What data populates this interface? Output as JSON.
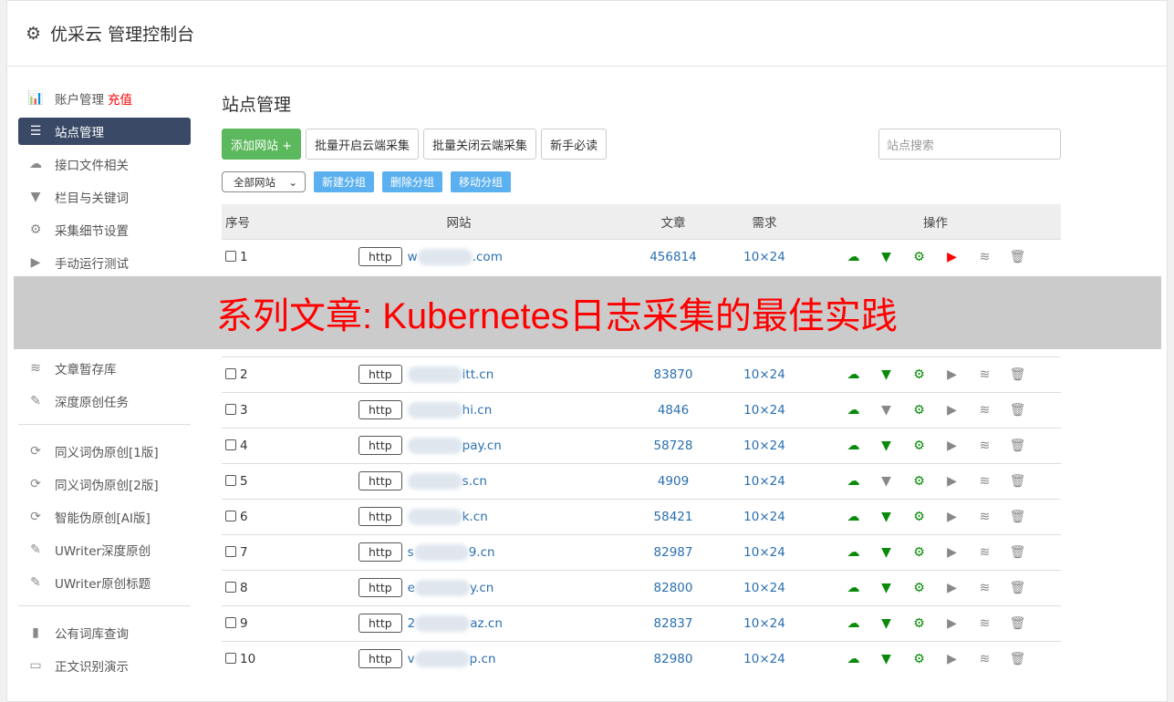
{
  "app": {
    "title": "优采云 管理控制台"
  },
  "sidebar": {
    "items": [
      {
        "label": "账户管理",
        "extra": "充值",
        "icon": "bar-chart-icon"
      },
      {
        "label": "站点管理",
        "icon": "server-icon",
        "active": true
      },
      {
        "label": "接口文件相关",
        "icon": "cloud-upload-icon"
      },
      {
        "label": "栏目与关键词",
        "icon": "filter-icon"
      },
      {
        "label": "采集细节设置",
        "icon": "gears-icon"
      },
      {
        "label": "手动运行测试",
        "icon": "play-circle-icon"
      },
      {
        "label": "文章暂存库",
        "icon": "database-icon"
      },
      {
        "label": "深度原创任务",
        "icon": "edit-icon"
      }
    ],
    "group2": [
      {
        "label": "同义词伪原创[1版]",
        "icon": "refresh-icon"
      },
      {
        "label": "同义词伪原创[2版]",
        "icon": "refresh-icon"
      },
      {
        "label": "智能伪原创[AI版]",
        "icon": "refresh-icon"
      },
      {
        "label": "UWriter深度原创",
        "icon": "edit-icon"
      },
      {
        "label": "UWriter原创标题",
        "icon": "edit-icon"
      }
    ],
    "group3": [
      {
        "label": "公有词库查询",
        "icon": "book-icon"
      },
      {
        "label": "正文识别演示",
        "icon": "monitor-icon"
      }
    ]
  },
  "main": {
    "title": "站点管理",
    "add_button": "添加网站 +",
    "batch_on": "批量开启云端采集",
    "batch_off": "批量关闭云端采集",
    "guide": "新手必读",
    "search_placeholder": "站点搜索",
    "group_select": "全部网站",
    "new_group": "新建分组",
    "delete_group": "删除分组",
    "move_group": "移动分组"
  },
  "table": {
    "headers": [
      "序号",
      "网站",
      "文章",
      "需求",
      "操作"
    ],
    "rows": [
      {
        "no": "1",
        "proto": "http",
        "site": "w",
        "suffix": ".com",
        "articles": "456814",
        "demand": "10×24",
        "filter_active": true,
        "play_red": true
      },
      {
        "no": "2",
        "proto": "http",
        "site": "",
        "suffix": "itt.cn",
        "articles": "83870",
        "demand": "10×24",
        "filter_active": true,
        "play_red": false
      },
      {
        "no": "3",
        "proto": "http",
        "site": "",
        "suffix": "hi.cn",
        "articles": "4846",
        "demand": "10×24",
        "filter_active": false,
        "play_red": false
      },
      {
        "no": "4",
        "proto": "http",
        "site": "",
        "suffix": "pay.cn",
        "articles": "58728",
        "demand": "10×24",
        "filter_active": true,
        "play_red": false
      },
      {
        "no": "5",
        "proto": "http",
        "site": "",
        "suffix": "s.cn",
        "articles": "4909",
        "demand": "10×24",
        "filter_active": false,
        "play_red": false
      },
      {
        "no": "6",
        "proto": "http",
        "site": "",
        "suffix": "k.cn",
        "articles": "58421",
        "demand": "10×24",
        "filter_active": true,
        "play_red": false
      },
      {
        "no": "7",
        "proto": "http",
        "site": "s",
        "suffix": "9.cn",
        "articles": "82987",
        "demand": "10×24",
        "filter_active": true,
        "play_red": false
      },
      {
        "no": "8",
        "proto": "http",
        "site": "e",
        "suffix": "y.cn",
        "articles": "82800",
        "demand": "10×24",
        "filter_active": true,
        "play_red": false
      },
      {
        "no": "9",
        "proto": "http",
        "site": "2",
        "suffix": "az.cn",
        "articles": "82837",
        "demand": "10×24",
        "filter_active": true,
        "play_red": false
      },
      {
        "no": "10",
        "proto": "http",
        "site": "v",
        "suffix": "p.cn",
        "articles": "82980",
        "demand": "10×24",
        "filter_active": true,
        "play_red": false
      }
    ]
  },
  "overlay": {
    "text": "系列文章: Kubernetes日志采集的最佳实践"
  },
  "colors": {
    "active_nav": "#3a4a66",
    "add_button": "#5cb85c",
    "group_button": "#5bb0f0",
    "link": "#2a6fb0",
    "overlay_text": "#ff0000"
  }
}
